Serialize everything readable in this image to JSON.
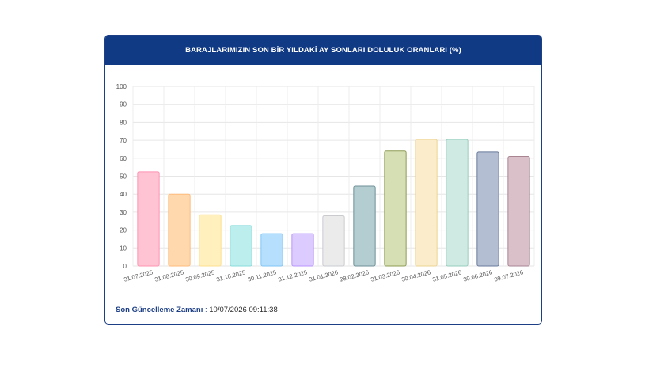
{
  "card": {
    "title": "BARAJLARIMIZIN SON BİR YILDAKİ AY SONLARI DOLULUK ORANLARI (%)"
  },
  "footer": {
    "label": "Son Güncelleme Zamanı",
    "separator": " : ",
    "value": "10/07/2026 09:11:38"
  },
  "chart_data": {
    "type": "bar",
    "title": "BARAJLARIMIZIN SON BİR YILDAKİ AY SONLARI DOLULUK ORANLARI (%)",
    "xlabel": "",
    "ylabel": "",
    "ylim": [
      0,
      100
    ],
    "yticks": [
      0,
      10,
      20,
      30,
      40,
      50,
      60,
      70,
      80,
      90,
      100
    ],
    "grid": true,
    "legend": "none",
    "categories": [
      "31.07.2025",
      "31.08.2025",
      "30.09.2025",
      "31.10.2025",
      "30.11.2025",
      "31.12.2025",
      "31.01.2026",
      "28.02.2026",
      "31.03.2026",
      "30.04.2026",
      "31.05.2026",
      "30.06.2026",
      "09.07.2026"
    ],
    "values": [
      52.5,
      40,
      28.5,
      22.5,
      18,
      18,
      28,
      44.5,
      64,
      70.5,
      70.5,
      63.5,
      61
    ],
    "colors": [
      "#ffc3d3",
      "#ffd8ae",
      "#fff0bd",
      "#bdeeee",
      "#b5dffd",
      "#dccbff",
      "#ebebec",
      "#b3cdd1",
      "#d6deb4",
      "#fbedcb",
      "#cfeae2",
      "#b3bed2",
      "#d9c0c9"
    ],
    "borders": [
      "#ff93b0",
      "#ffbb7a",
      "#ffdf8f",
      "#89dcdc",
      "#7fc5f5",
      "#b996ff",
      "#c9cbcf",
      "#6e9098",
      "#8e9c55",
      "#edd392",
      "#96cdbd",
      "#6a7b9c",
      "#a98594"
    ]
  }
}
